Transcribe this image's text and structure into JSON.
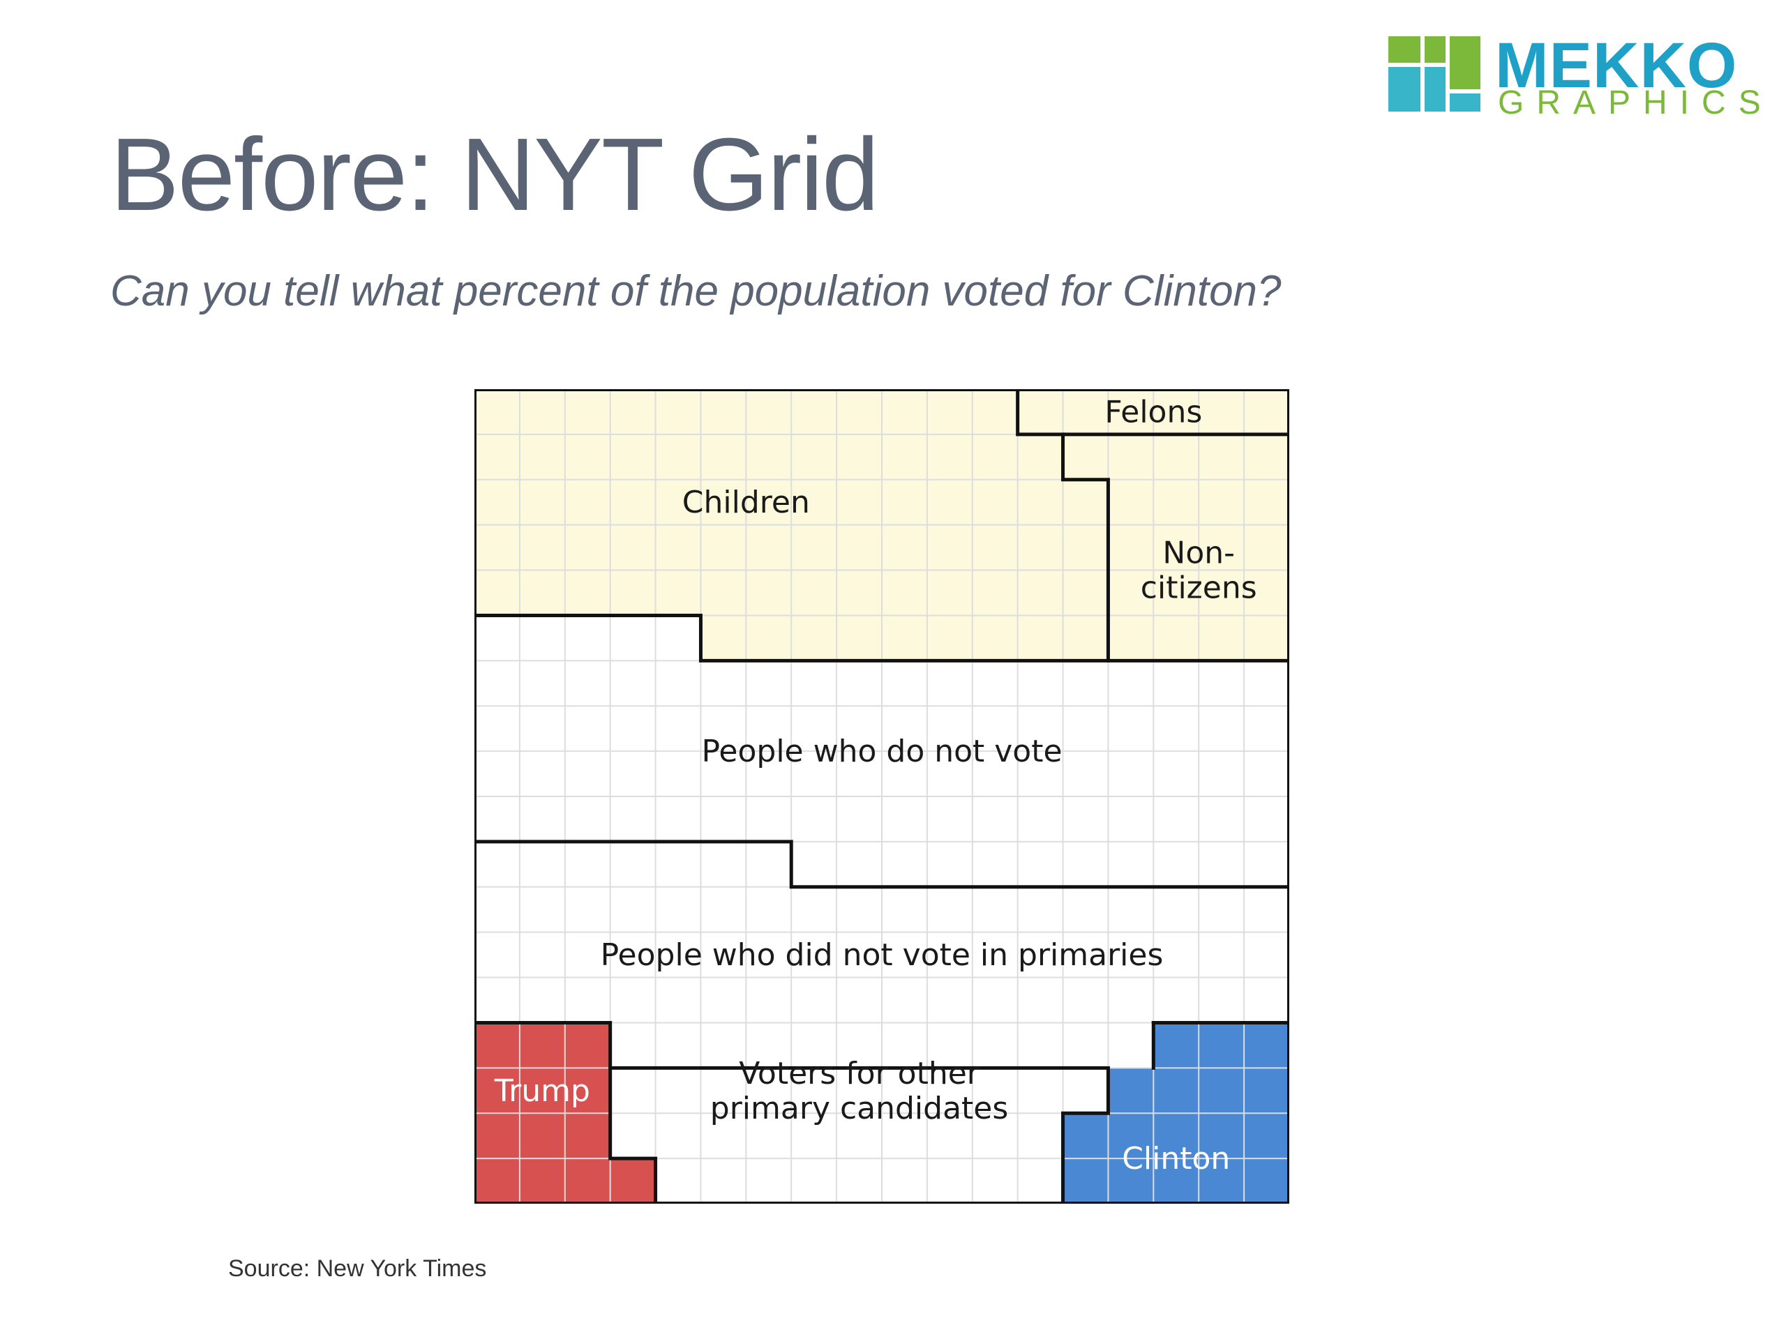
{
  "slide": {
    "title": "Before: NYT Grid",
    "subtitle": "Can you tell what percent of the population voted for Clinton?",
    "source": "Source: New York Times"
  },
  "logo": {
    "word_1": "MEKKO",
    "word_2": "GRAPHICS",
    "colors": {
      "green": "#7cb83a",
      "teal": "#39b5c9"
    }
  },
  "chart_data": {
    "type": "grid",
    "grid": {
      "columns": 18,
      "rows": 18,
      "gridlines": true
    },
    "colors": {
      "ineligible": "#fcf9dc",
      "eligible": "#ffffff",
      "trump": "#d6514f",
      "clinton": "#4a88d4",
      "gridline": "#dddddd",
      "boundary": "#111111"
    },
    "groups": [
      {
        "label": "Children",
        "fill": "ineligible",
        "text_lines": [
          "Children"
        ],
        "cells": [
          [
            0,
            0,
            12,
            5
          ],
          [
            12,
            1,
            1,
            1
          ],
          [
            12,
            2,
            2,
            3
          ],
          [
            5,
            5,
            9,
            1
          ]
        ]
      },
      {
        "label": "Felons",
        "fill": "ineligible",
        "text_lines": [
          "Felons"
        ],
        "cells": [
          [
            12,
            0,
            6,
            1
          ]
        ]
      },
      {
        "label": "Non-citizens",
        "fill": "ineligible",
        "text_lines": [
          "Non-",
          "citizens"
        ],
        "cells": [
          [
            13,
            1,
            5,
            1
          ],
          [
            14,
            2,
            4,
            4
          ]
        ]
      },
      {
        "label": "People who do not vote",
        "fill": "eligible",
        "text_lines": [
          "People who do not vote"
        ],
        "cells": [
          [
            0,
            5,
            5,
            1
          ],
          [
            0,
            6,
            18,
            4
          ],
          [
            7,
            10,
            11,
            1
          ]
        ]
      },
      {
        "label": "People who did not vote in primaries",
        "fill": "eligible",
        "text_lines": [
          "People who did not vote in primaries"
        ],
        "cells": [
          [
            0,
            10,
            7,
            1
          ],
          [
            0,
            11,
            18,
            3
          ],
          [
            3,
            14,
            12,
            1
          ]
        ]
      },
      {
        "label": "Trump",
        "fill": "trump",
        "text_lines": [
          "Trump"
        ],
        "cells": [
          [
            0,
            14,
            3,
            3
          ],
          [
            0,
            17,
            4,
            1
          ]
        ]
      },
      {
        "label": "Voters for other primary candidates",
        "fill": "eligible",
        "text_lines": [
          "Voters for other",
          "primary candidates"
        ],
        "cells": [
          [
            3,
            15,
            11,
            1
          ],
          [
            3,
            16,
            10,
            1
          ],
          [
            4,
            17,
            9,
            1
          ]
        ]
      },
      {
        "label": "Clinton",
        "fill": "clinton",
        "text_lines": [
          "Clinton"
        ],
        "cells": [
          [
            15,
            14,
            3,
            1
          ],
          [
            14,
            15,
            4,
            1
          ],
          [
            13,
            16,
            5,
            2
          ]
        ]
      }
    ],
    "boundaries": [
      [
        [
          12,
          0
        ],
        [
          12,
          1
        ],
        [
          18,
          1
        ]
      ],
      [
        [
          13,
          1
        ],
        [
          13,
          2
        ],
        [
          14,
          2
        ],
        [
          14,
          6
        ]
      ],
      [
        [
          0,
          5
        ],
        [
          5,
          5
        ],
        [
          5,
          6
        ],
        [
          18,
          6
        ]
      ],
      [
        [
          0,
          10
        ],
        [
          7,
          10
        ],
        [
          7,
          11
        ],
        [
          18,
          11
        ]
      ],
      [
        [
          0,
          14
        ],
        [
          3,
          14
        ],
        [
          3,
          17
        ],
        [
          4,
          17
        ],
        [
          4,
          18
        ]
      ],
      [
        [
          3,
          15
        ],
        [
          14,
          15
        ],
        [
          14,
          16
        ],
        [
          13,
          16
        ],
        [
          13,
          18
        ]
      ],
      [
        [
          15,
          14
        ],
        [
          18,
          14
        ]
      ],
      [
        [
          15,
          14
        ],
        [
          15,
          15
        ]
      ]
    ]
  }
}
